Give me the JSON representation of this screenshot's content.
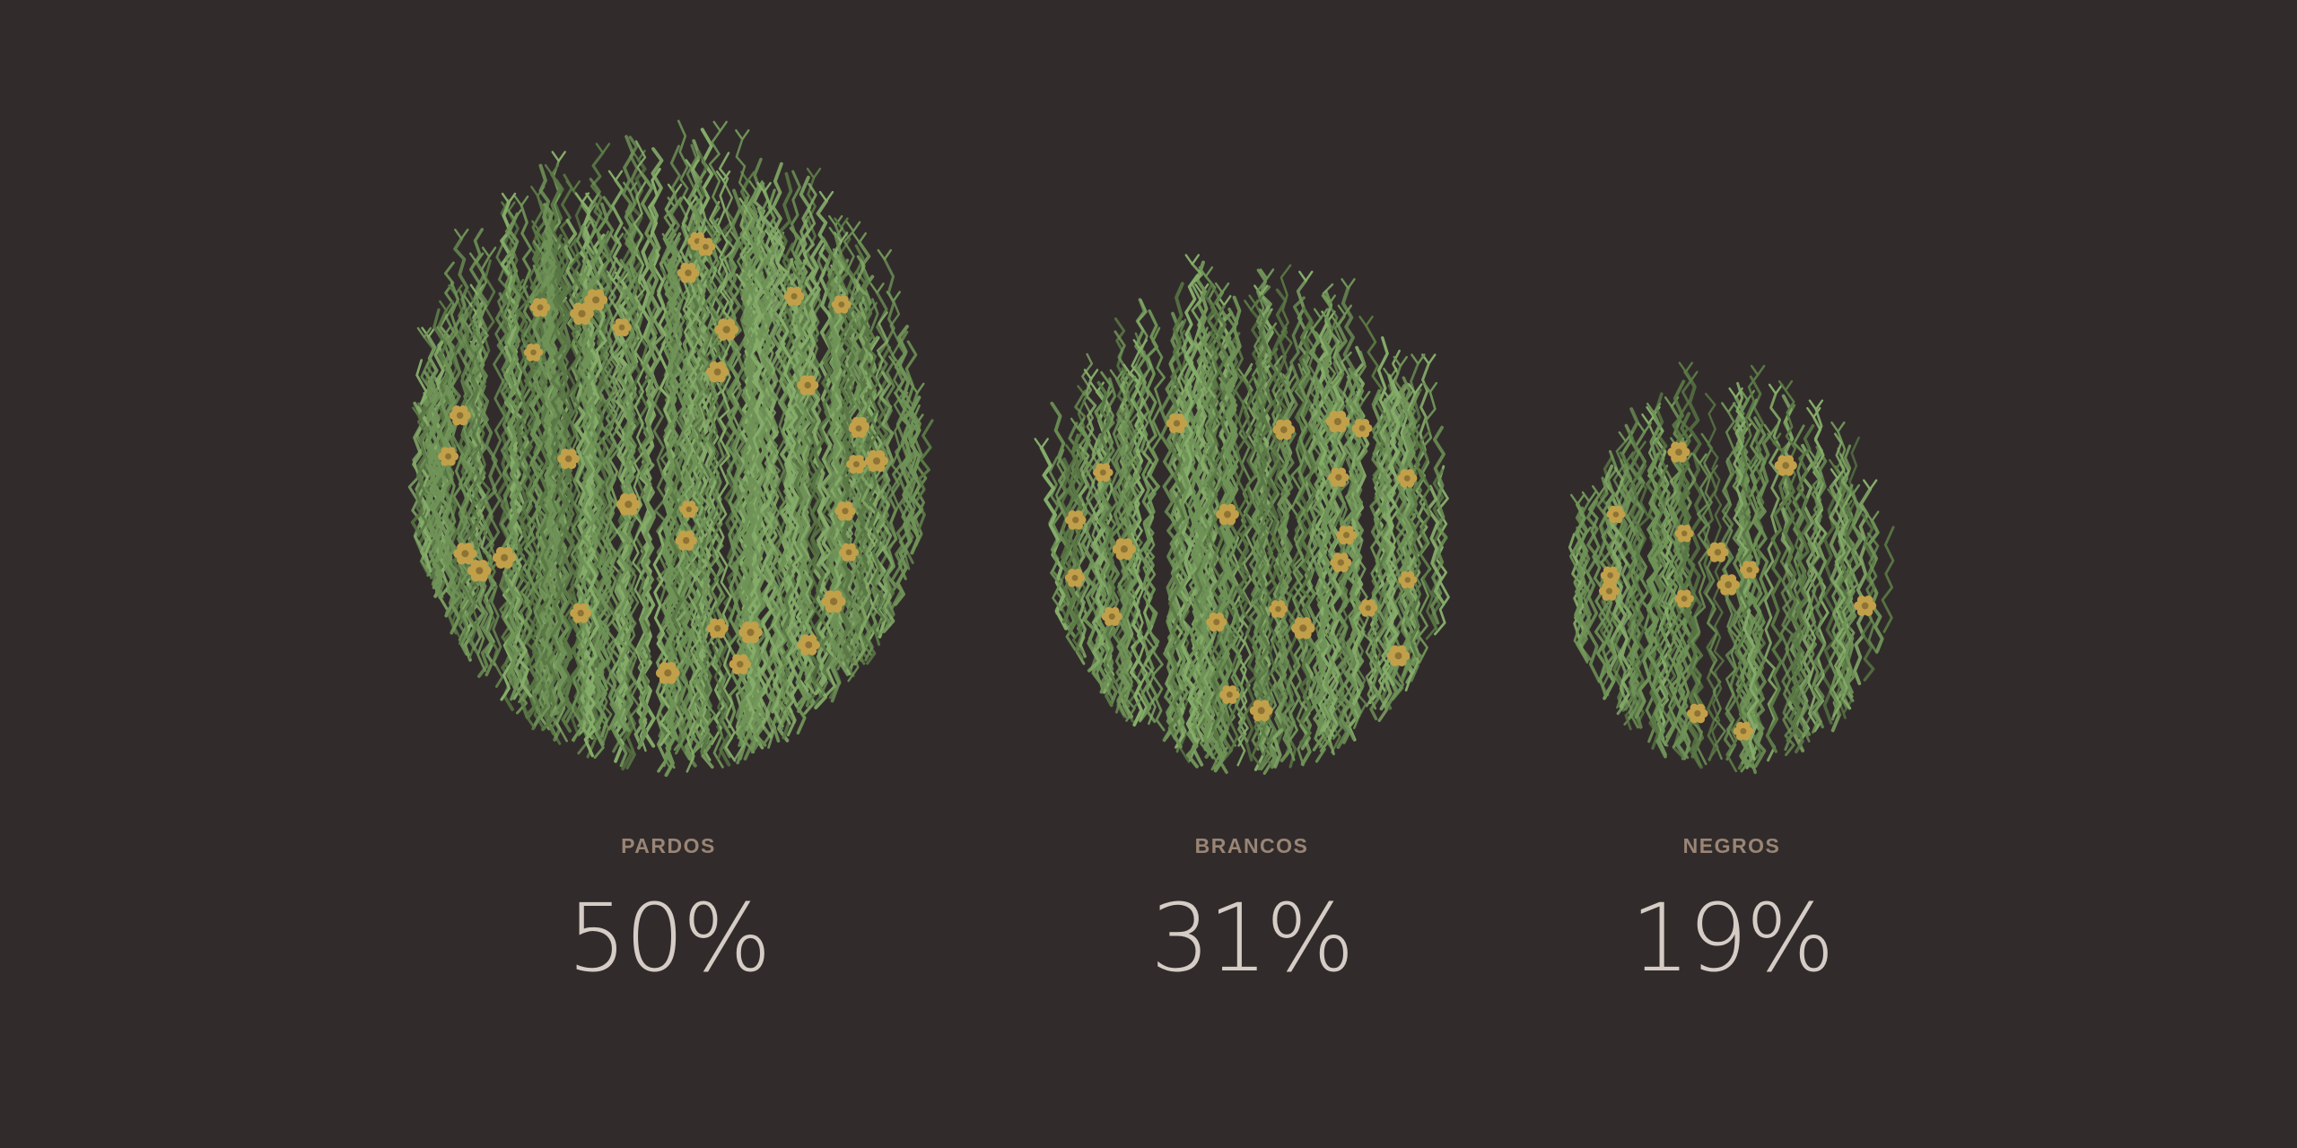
{
  "chart_data": {
    "type": "pictogram",
    "categories": [
      "PARDOS",
      "BRANCOS",
      "NEGROS"
    ],
    "values": [
      50,
      31,
      19
    ],
    "value_labels": [
      "50%",
      "31%",
      "19%"
    ],
    "unit": "%"
  },
  "colors": {
    "background": "#312c2b",
    "stem_light": "#86ad6a",
    "stem_mid": "#6f9357",
    "stem_dark": "#5a7845",
    "flower": "#c2a04a",
    "flower_center": "#8f7334",
    "label": "#9a8576",
    "value": "#d6ccc6"
  }
}
